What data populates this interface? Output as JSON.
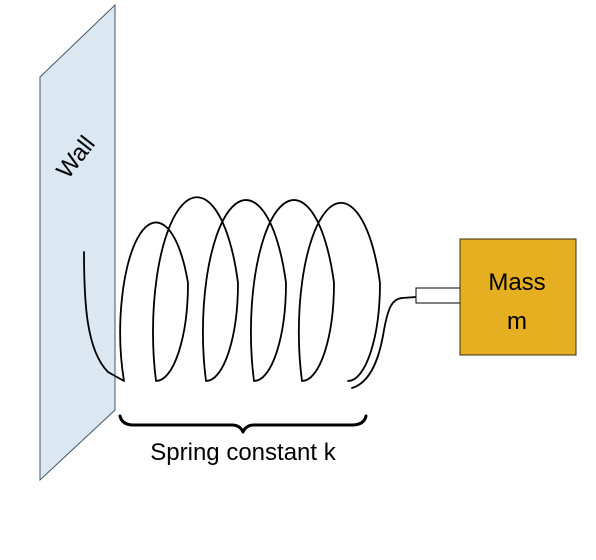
{
  "wall": {
    "label": "Wall",
    "fill_color": "#dbe8f2",
    "stroke_color": "#41566a"
  },
  "spring": {
    "label": "Spring constant k",
    "coil_color": "#000000"
  },
  "mass": {
    "label_line1": "Mass",
    "label_line2": "m",
    "fill_color": "#e6ae21",
    "stroke_color": "#3a2e10"
  }
}
